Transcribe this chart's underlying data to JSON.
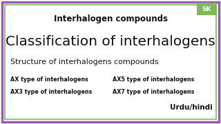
{
  "bg_color": "#ffffff",
  "border_color_outer": "#9b59b6",
  "border_color_inner": "#7dbb57",
  "title": "Interhalogen compounds",
  "line2": "Classification of interhalogens",
  "line3": "Structure of interhalogens compounds",
  "line4_left": "AX type of interhalogens",
  "line4_right": "AX5 type of interhalogens",
  "line5_left": "AX3 type of interhalogens",
  "line5_right": "AX7 type of interhalogens",
  "line6": "Urdu/hindi",
  "sk_label": "SK",
  "sk_bg": "#7dbb57",
  "sk_text_color": "#ffffff",
  "title_fontsize": 8.5,
  "line2_fontsize": 14.5,
  "line3_fontsize": 8.0,
  "line4_fontsize": 5.8,
  "line6_fontsize": 7.5
}
